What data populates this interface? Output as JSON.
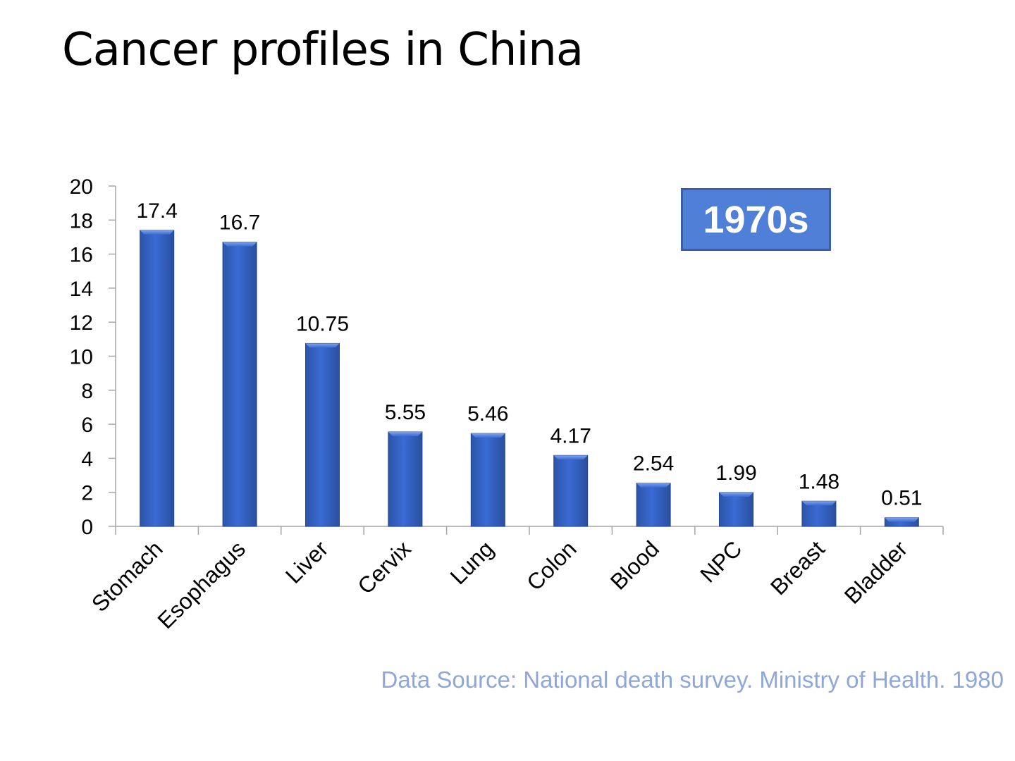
{
  "slide": {
    "title": "Cancer profiles in China",
    "badge": "1970s",
    "source": "Data Source: National death survey. Ministry of Health. 1980"
  },
  "colors": {
    "bar": "#3366cc",
    "bar_dark": "#2a4f9e",
    "badge_bg": "#4f7fd6",
    "source_text": "#8fa6d8"
  },
  "chart_data": {
    "type": "bar",
    "title": "",
    "xlabel": "",
    "ylabel": "",
    "categories": [
      "Stomach",
      "Esophagus",
      "Liver",
      "Cervix",
      "Lung",
      "Colon",
      "Blood",
      "NPC",
      "Breast",
      "Bladder"
    ],
    "values": [
      17.4,
      16.7,
      10.75,
      5.55,
      5.46,
      4.17,
      2.54,
      1.99,
      1.48,
      0.51
    ],
    "data_labels": [
      "17.4",
      "16.7",
      "10.75",
      "5.55",
      "5.46",
      "4.17",
      "2.54",
      "1.99",
      "1.48",
      "0.51"
    ],
    "ylim": [
      0,
      20
    ],
    "yticks": [
      0,
      2,
      4,
      6,
      8,
      10,
      12,
      14,
      16,
      18,
      20
    ],
    "grid": false,
    "legend": "none",
    "annotation": "1970s"
  }
}
